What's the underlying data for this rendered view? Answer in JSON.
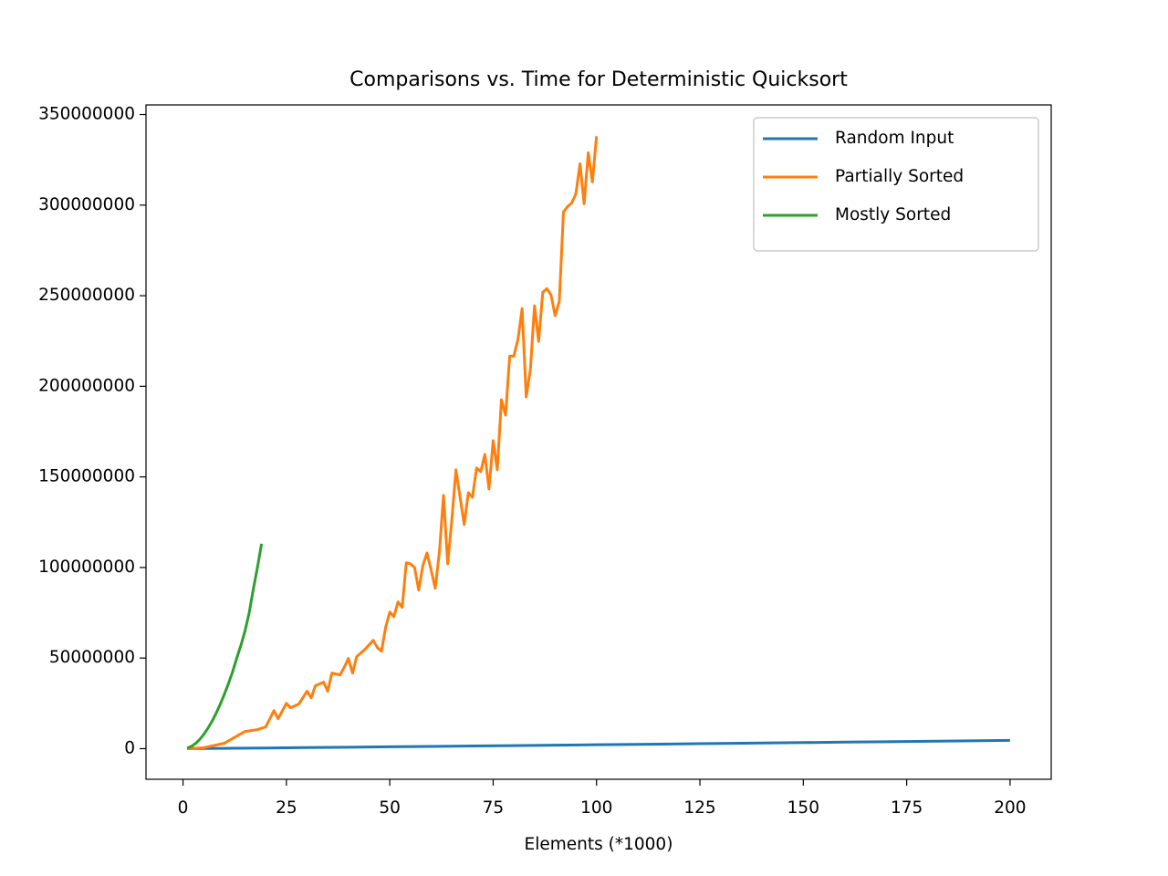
{
  "chart_data": {
    "type": "line",
    "title": "Comparisons vs. Time for Deterministic Quicksort",
    "x_label": "Elements (*1000)",
    "xlim": [
      -8.95,
      209.95
    ],
    "xticks": [
      0,
      25,
      50,
      75,
      100,
      125,
      150,
      175,
      200
    ],
    "ylim": [
      -16900000,
      355300000
    ],
    "yticks": [
      0,
      50000000,
      100000000,
      150000000,
      200000000,
      250000000,
      300000000,
      350000000
    ],
    "grid": false,
    "legend": "upper right",
    "series": [
      {
        "name": "Random Input",
        "color": "#1f77b4",
        "x": [
          1,
          10,
          20,
          30,
          40,
          50,
          60,
          70,
          80,
          90,
          100,
          110,
          120,
          130,
          140,
          150,
          160,
          170,
          180,
          190,
          200
        ],
        "values": [
          13000,
          173000,
          371000,
          580000,
          795000,
          1015000,
          1238000,
          1465000,
          1694000,
          1926000,
          2159000,
          2395000,
          2632000,
          2871000,
          3112000,
          3352000,
          3596000,
          3841000,
          4086000,
          4332000,
          4577000
        ]
      },
      {
        "name": "Partially Sorted",
        "color": "#ff7f0e",
        "x": [
          1,
          5,
          10,
          15,
          18,
          20,
          22,
          23,
          25,
          26,
          28,
          30,
          31,
          32,
          34,
          35,
          36,
          38,
          39,
          40,
          41,
          42,
          44,
          46,
          47,
          48,
          49,
          50,
          51,
          52,
          53,
          54,
          55,
          56,
          57,
          58,
          59,
          60,
          61,
          62,
          63,
          64,
          65,
          66,
          67,
          68,
          69,
          70,
          71,
          72,
          73,
          74,
          75,
          76,
          77,
          78,
          79,
          80,
          81,
          82,
          83,
          84,
          85,
          86,
          87,
          88,
          89,
          90,
          91,
          92,
          93,
          94,
          95,
          96,
          97,
          98,
          99,
          100
        ],
        "values": [
          0,
          500000,
          3000000,
          9500000,
          10500000,
          12000000,
          21000000,
          16500000,
          25000000,
          22600000,
          24600000,
          31700000,
          28000000,
          34700000,
          36700000,
          31700000,
          41700000,
          40700000,
          45000000,
          49800000,
          41700000,
          50800000,
          54800000,
          59800000,
          55800000,
          53800000,
          66900000,
          75400000,
          72900000,
          81000000,
          78000000,
          102600000,
          102000000,
          100000000,
          87500000,
          101000000,
          108000000,
          98600000,
          88500000,
          108600000,
          139800000,
          102000000,
          126000000,
          153900000,
          138800000,
          123700000,
          141300000,
          138800000,
          154900000,
          152900000,
          162400000,
          143300000,
          170000000,
          153900000,
          192600000,
          184000000,
          216700000,
          216700000,
          225800000,
          242900000,
          194100000,
          209200000,
          244400000,
          224800000,
          251900000,
          253900000,
          250400000,
          238900000,
          246900000,
          296200000,
          299200000,
          301200000,
          306200000,
          322800000,
          300700000,
          328900000,
          312800000,
          338000000
        ]
      },
      {
        "name": "Mostly Sorted",
        "color": "#2ca02c",
        "x": [
          1,
          2,
          3,
          4,
          5,
          6,
          7,
          8,
          9,
          10,
          11,
          12,
          13,
          14,
          15,
          16,
          17,
          18,
          19
        ],
        "values": [
          300000,
          1200000,
          2800000,
          5000000,
          7800000,
          11200000,
          15000000,
          19500000,
          24500000,
          30000000,
          36000000,
          42500000,
          50000000,
          57000000,
          65000000,
          75000000,
          88000000,
          100000000,
          113100000
        ]
      }
    ]
  }
}
